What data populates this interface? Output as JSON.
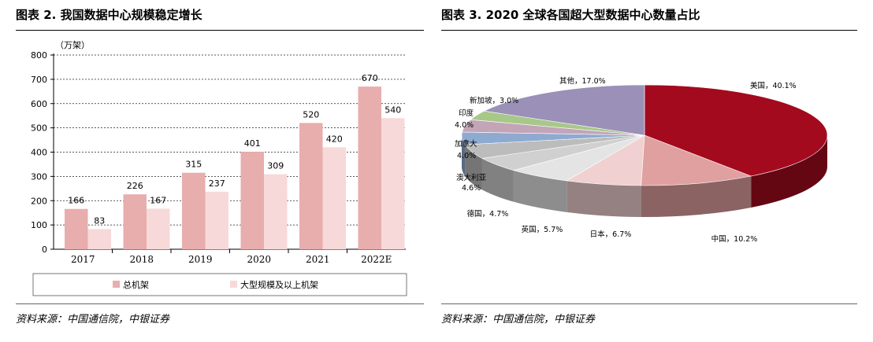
{
  "left_panel": {
    "title": "图表 2. 我国数据中心规模稳定增长",
    "source": "资料来源：中国通信院，中银证券"
  },
  "right_panel": {
    "title": "图表 3. 2020 全球各国超大型数据中心数量占比",
    "source": "资料来源：中国通信院，中银证券"
  },
  "colors": {
    "series_total": "#e8adad",
    "series_large": "#f7d9d9",
    "grid": "#222222"
  },
  "chart_data": [
    {
      "type": "bar",
      "title": "",
      "unit_label": "（万架）",
      "categories": [
        "2017",
        "2018",
        "2019",
        "2020",
        "2021",
        "2022E"
      ],
      "series": [
        {
          "name": "总机架",
          "values": [
            166,
            226,
            315,
            401,
            520,
            670
          ]
        },
        {
          "name": "大型规模及以上机架",
          "values": [
            83,
            167,
            237,
            309,
            420,
            540
          ]
        }
      ],
      "ylim": [
        0,
        800
      ],
      "yticks": [
        0,
        100,
        200,
        300,
        400,
        500,
        600,
        700,
        800
      ],
      "grid": "dashed horizontal",
      "legend": "bottom"
    },
    {
      "type": "pie",
      "style": "3d exploded-none",
      "slices": [
        {
          "label": "美国，40.1%",
          "value": 40.1,
          "color": "#a30a1e"
        },
        {
          "label": "中国，10.2%",
          "value": 10.2,
          "color": "#e0a0a0"
        },
        {
          "label": "日本，6.7%",
          "value": 6.7,
          "color": "#f0d0d0"
        },
        {
          "label": "英国，5.7%",
          "value": 5.7,
          "color": "#e4e4e4"
        },
        {
          "label": "德国，4.7%",
          "value": 4.7,
          "color": "#d0d0d0"
        },
        {
          "label": "澳大利亚 4.6%",
          "value": 4.6,
          "color": "#bcbcbc"
        },
        {
          "label": "加拿大 4.0%",
          "value": 4.0,
          "color": "#8faad0"
        },
        {
          "label": "印度 4.0%",
          "value": 4.0,
          "color": "#c3a5b8"
        },
        {
          "label": "新加坡，3.0%",
          "value": 3.0,
          "color": "#a8c88a"
        },
        {
          "label": "其他，17.0%",
          "value": 17.0,
          "color": "#9b90b8"
        }
      ]
    }
  ]
}
